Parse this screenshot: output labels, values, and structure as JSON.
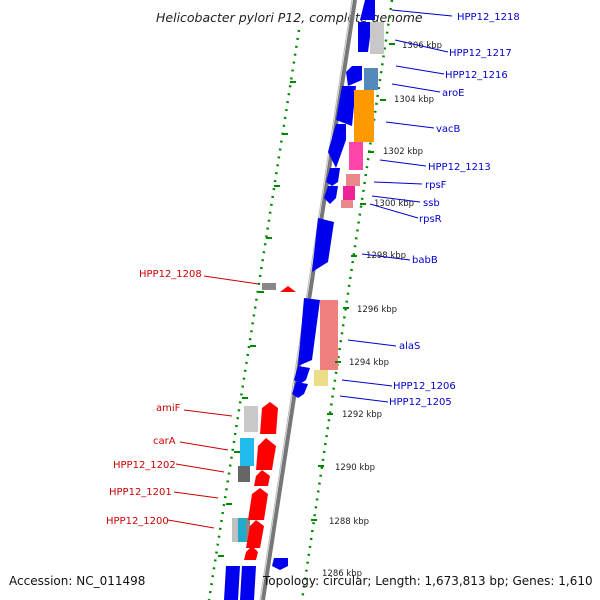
{
  "title": "Helicobacter pylori P12, complete genome",
  "footer": {
    "accession": "Accession: NC_011498",
    "topology": "Topology: circular; Length: 1,673,813 bp; Genes: 1,610"
  },
  "colors": {
    "forward_label": "#0000cc",
    "reverse_label": "#cc0000",
    "blue_gene": "#0000ee",
    "red_gene": "#ff0000",
    "dotted_track": "#008800",
    "backbone": "#888888"
  },
  "scale_labels": [
    "1306 kbp",
    "1304 kbp",
    "1302 kbp",
    "1300 kbp",
    "1298 kbp",
    "1296 kbp",
    "1294 kbp",
    "1292 kbp",
    "1290 kbp",
    "1288 kbp",
    "1286 kbp"
  ],
  "forward_genes": [
    "HPP12_1218",
    "HPP12_1217",
    "HPP12_1216",
    "aroE",
    "vacB",
    "HPP12_1213",
    "rpsF",
    "ssb",
    "rpsR",
    "babB",
    "alaS",
    "HPP12_1206",
    "HPP12_1205"
  ],
  "reverse_genes": [
    "HPP12_1208",
    "amiF",
    "carA",
    "HPP12_1202",
    "HPP12_1201",
    "HPP12_1200"
  ]
}
